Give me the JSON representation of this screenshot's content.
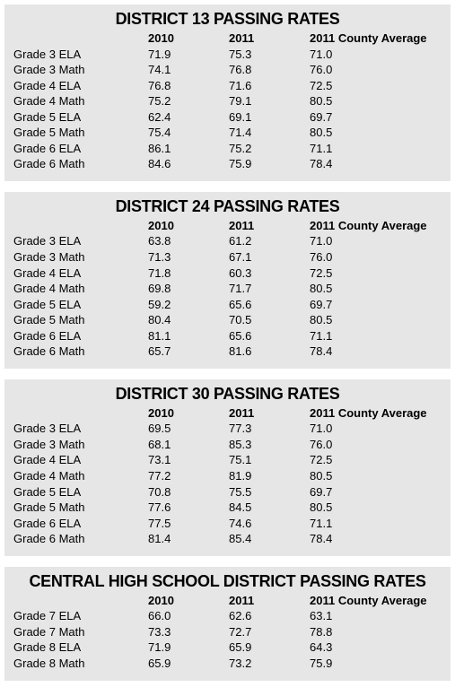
{
  "headers": {
    "col_2010": "2010",
    "col_2011": "2011",
    "col_county": "2011 County Average"
  },
  "colors": {
    "block_bg": "#e6e6e6",
    "page_bg": "#ffffff",
    "text": "#000000"
  },
  "tables": [
    {
      "title": "DISTRICT 13 PASSING RATES",
      "rows": [
        {
          "label": "Grade 3 ELA",
          "y2010": "71.9",
          "y2011": "75.3",
          "county": "71.0"
        },
        {
          "label": "Grade 3 Math",
          "y2010": "74.1",
          "y2011": "76.8",
          "county": "76.0"
        },
        {
          "label": "Grade 4 ELA",
          "y2010": "76.8",
          "y2011": "71.6",
          "county": "72.5"
        },
        {
          "label": "Grade 4 Math",
          "y2010": "75.2",
          "y2011": "79.1",
          "county": "80.5"
        },
        {
          "label": "Grade 5 ELA",
          "y2010": "62.4",
          "y2011": "69.1",
          "county": "69.7"
        },
        {
          "label": "Grade 5 Math",
          "y2010": "75.4",
          "y2011": "71.4",
          "county": "80.5"
        },
        {
          "label": "Grade 6 ELA",
          "y2010": "86.1",
          "y2011": "75.2",
          "county": "71.1"
        },
        {
          "label": "Grade 6 Math",
          "y2010": "84.6",
          "y2011": "75.9",
          "county": "78.4"
        }
      ]
    },
    {
      "title": "DISTRICT 24 PASSING RATES",
      "rows": [
        {
          "label": "Grade 3 ELA",
          "y2010": "63.8",
          "y2011": "61.2",
          "county": "71.0"
        },
        {
          "label": "Grade 3 Math",
          "y2010": "71.3",
          "y2011": "67.1",
          "county": "76.0"
        },
        {
          "label": "Grade 4 ELA",
          "y2010": "71.8",
          "y2011": "60.3",
          "county": "72.5"
        },
        {
          "label": "Grade 4 Math",
          "y2010": "69.8",
          "y2011": "71.7",
          "county": "80.5"
        },
        {
          "label": "Grade 5 ELA",
          "y2010": "59.2",
          "y2011": "65.6",
          "county": "69.7"
        },
        {
          "label": "Grade 5 Math",
          "y2010": "80.4",
          "y2011": "70.5",
          "county": "80.5"
        },
        {
          "label": "Grade 6 ELA",
          "y2010": "81.1",
          "y2011": "65.6",
          "county": "71.1"
        },
        {
          "label": "Grade 6 Math",
          "y2010": "65.7",
          "y2011": "81.6",
          "county": "78.4"
        }
      ]
    },
    {
      "title": "DISTRICT 30 PASSING RATES",
      "rows": [
        {
          "label": "Grade 3 ELA",
          "y2010": "69.5",
          "y2011": "77.3",
          "county": "71.0"
        },
        {
          "label": "Grade 3 Math",
          "y2010": "68.1",
          "y2011": "85.3",
          "county": "76.0"
        },
        {
          "label": "Grade 4 ELA",
          "y2010": "73.1",
          "y2011": "75.1",
          "county": "72.5"
        },
        {
          "label": "Grade 4 Math",
          "y2010": "77.2",
          "y2011": "81.9",
          "county": "80.5"
        },
        {
          "label": "Grade 5 ELA",
          "y2010": "70.8",
          "y2011": "75.5",
          "county": "69.7"
        },
        {
          "label": "Grade 5 Math",
          "y2010": "77.6",
          "y2011": "84.5",
          "county": "80.5"
        },
        {
          "label": "Grade 6 ELA",
          "y2010": "77.5",
          "y2011": "74.6",
          "county": "71.1"
        },
        {
          "label": "Grade 6 Math",
          "y2010": "81.4",
          "y2011": "85.4",
          "county": "78.4"
        }
      ]
    },
    {
      "title": "CENTRAL HIGH SCHOOL DISTRICT PASSING RATES",
      "rows": [
        {
          "label": "Grade 7 ELA",
          "y2010": "66.0",
          "y2011": "62.6",
          "county": "63.1"
        },
        {
          "label": "Grade 7 Math",
          "y2010": "73.3",
          "y2011": "72.7",
          "county": "78.8"
        },
        {
          "label": "Grade 8 ELA",
          "y2010": "71.9",
          "y2011": "65.9",
          "county": "64.3"
        },
        {
          "label": "Grade 8 Math",
          "y2010": "65.9",
          "y2011": "73.2",
          "county": "75.9"
        }
      ]
    }
  ]
}
